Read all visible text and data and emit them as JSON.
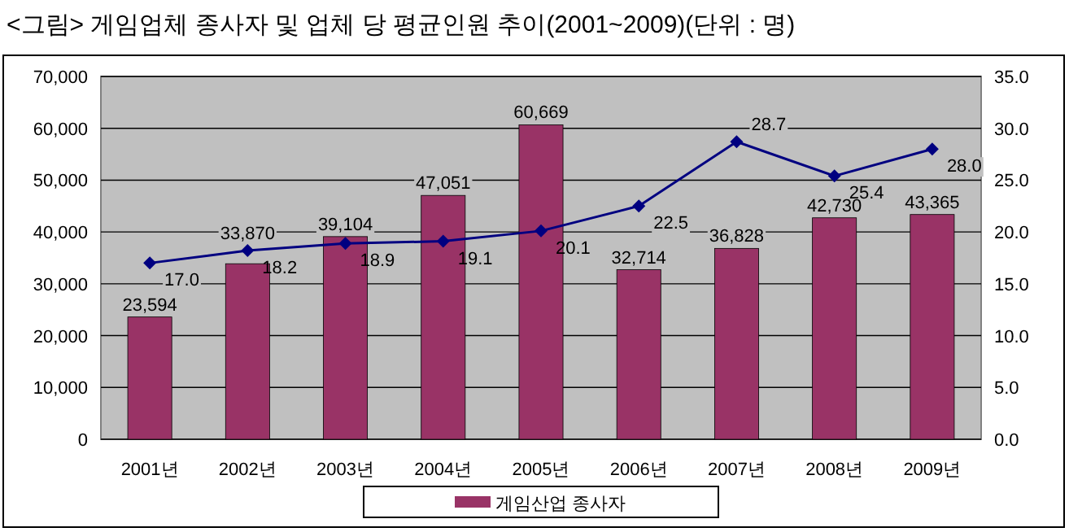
{
  "chart_data": {
    "type": "bar",
    "title": "<그림> 게임업체 종사자 및 업체 당 평균인원 추이(2001~2009)(단위 : 명)",
    "categories": [
      "2001년",
      "2002년",
      "2003년",
      "2004년",
      "2005년",
      "2006년",
      "2007년",
      "2008년",
      "2009년"
    ],
    "series": [
      {
        "name": "게임산업 종사자",
        "color": "#993366",
        "values": [
          23594,
          33870,
          39104,
          47051,
          60669,
          32714,
          36828,
          42730,
          43365
        ],
        "value_labels": [
          "23,594",
          "33,870",
          "39,104",
          "47,051",
          "60,669",
          "32,714",
          "36,828",
          "42,730",
          "43,365"
        ]
      },
      {
        "type": "line",
        "axis": "y2",
        "color": "#000080",
        "marker": "diamond",
        "values": [
          17.0,
          18.2,
          18.9,
          19.1,
          20.1,
          22.5,
          28.7,
          25.4,
          28.0
        ],
        "value_labels": [
          "17.0",
          "18.2",
          "18.9",
          "19.1",
          "20.1",
          "22.5",
          "28.7",
          "25.4",
          "28.0"
        ]
      }
    ],
    "ylim": [
      0,
      70000
    ],
    "yticks": [
      0,
      {
        "value": 10000,
        "label": "10,000"
      },
      {
        "value": 20000,
        "label": "20,000"
      },
      {
        "value": 30000,
        "label": "30,000"
      },
      {
        "value": 40000,
        "label": "40,000"
      },
      {
        "value": 50000,
        "label": "50,000"
      },
      {
        "value": 60000,
        "label": "60,000"
      },
      {
        "value": 70000,
        "label": "70,000"
      }
    ],
    "y2lim": [
      0,
      35
    ],
    "y2ticks": [
      {
        "value": 0,
        "label": "0.0"
      },
      {
        "value": 5,
        "label": "5.0"
      },
      {
        "value": 10,
        "label": "10.0"
      },
      {
        "value": 15,
        "label": "15.0"
      },
      {
        "value": 20,
        "label": "20.0"
      },
      {
        "value": 25,
        "label": "25.0"
      },
      {
        "value": 30,
        "label": "30.0"
      },
      {
        "value": 35,
        "label": "35.0"
      }
    ],
    "grid": "y",
    "legend": "bottom"
  }
}
